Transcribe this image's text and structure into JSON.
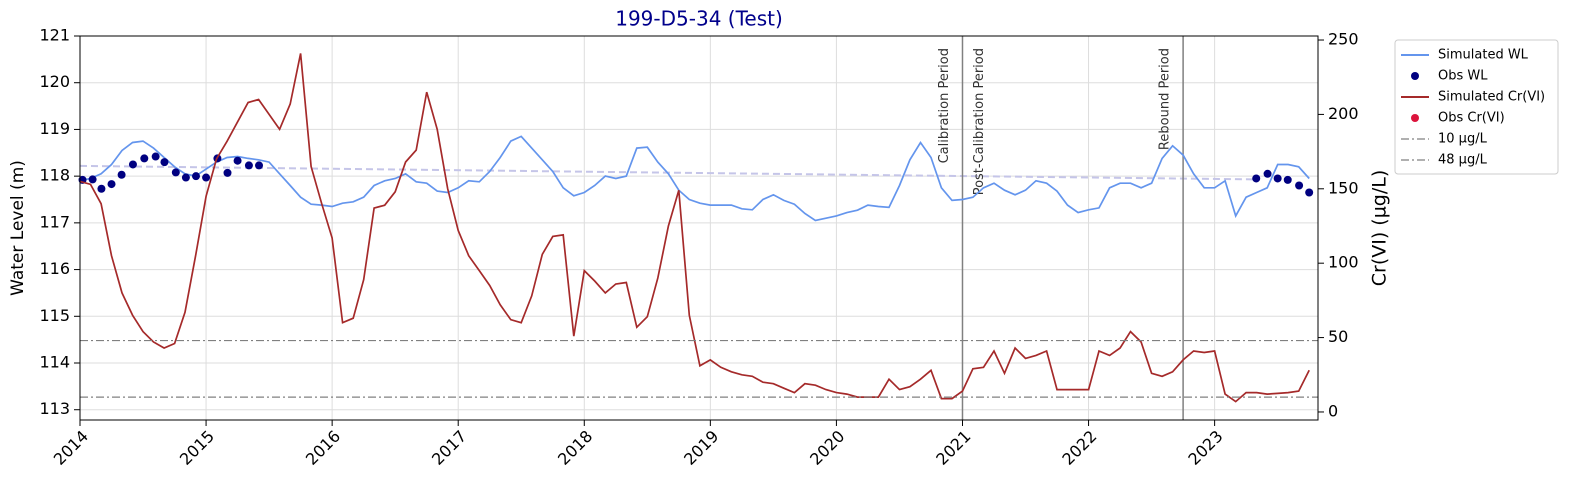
{
  "chart_data": {
    "type": "line",
    "title": "199-D5-34 (Test)",
    "ylabel": "Water Level (m)",
    "y2label": "Cr(VI) (µg/L)",
    "xlim": [
      2014,
      2023.82
    ],
    "xticks": [
      2014,
      2015,
      2016,
      2017,
      2018,
      2019,
      2020,
      2021,
      2022,
      2023
    ],
    "ylim": [
      112.78,
      121
    ],
    "yticks": [
      113,
      114,
      115,
      116,
      117,
      118,
      119,
      120,
      121
    ],
    "y2lim": [
      -5.4,
      252.7
    ],
    "y2ticks": [
      0,
      50,
      100,
      150,
      200,
      250
    ],
    "grid": true,
    "legend": "outside-right",
    "series": [
      {
        "name": "Simulated WL",
        "color": "#6495ed",
        "style": "line",
        "x": [
          2014.0,
          2014.083,
          2014.167,
          2014.25,
          2014.333,
          2014.417,
          2014.5,
          2014.583,
          2014.667,
          2014.75,
          2014.833,
          2014.917,
          2015.0,
          2015.083,
          2015.167,
          2015.25,
          2015.333,
          2015.417,
          2015.5,
          2015.583,
          2015.667,
          2015.75,
          2015.833,
          2015.917,
          2016.0,
          2016.083,
          2016.167,
          2016.25,
          2016.333,
          2016.417,
          2016.5,
          2016.583,
          2016.667,
          2016.75,
          2016.833,
          2016.917,
          2017.0,
          2017.083,
          2017.167,
          2017.25,
          2017.333,
          2017.417,
          2017.5,
          2017.583,
          2017.667,
          2017.75,
          2017.833,
          2017.917,
          2018.0,
          2018.083,
          2018.167,
          2018.25,
          2018.333,
          2018.417,
          2018.5,
          2018.583,
          2018.667,
          2018.75,
          2018.833,
          2018.917,
          2019.0,
          2019.083,
          2019.167,
          2019.25,
          2019.333,
          2019.417,
          2019.5,
          2019.583,
          2019.667,
          2019.75,
          2019.833,
          2019.917,
          2020.0,
          2020.083,
          2020.167,
          2020.25,
          2020.333,
          2020.417,
          2020.5,
          2020.583,
          2020.667,
          2020.75,
          2020.833,
          2020.917,
          2021.0,
          2021.083,
          2021.167,
          2021.25,
          2021.333,
          2021.417,
          2021.5,
          2021.583,
          2021.667,
          2021.75,
          2021.833,
          2021.917,
          2022.0,
          2022.083,
          2022.167,
          2022.25,
          2022.333,
          2022.417,
          2022.5,
          2022.583,
          2022.667,
          2022.75,
          2022.833,
          2022.917,
          2023.0,
          2023.083,
          2023.167,
          2023.25,
          2023.333,
          2023.417,
          2023.5,
          2023.583,
          2023.667,
          2023.75
        ],
        "values": [
          117.9,
          117.95,
          118.05,
          118.25,
          118.55,
          118.72,
          118.75,
          118.6,
          118.4,
          118.2,
          118.05,
          118.0,
          118.15,
          118.3,
          118.4,
          118.42,
          118.38,
          118.35,
          118.3,
          118.05,
          117.8,
          117.55,
          117.4,
          117.38,
          117.35,
          117.42,
          117.45,
          117.55,
          117.8,
          117.9,
          117.95,
          118.05,
          117.88,
          117.85,
          117.68,
          117.65,
          117.75,
          117.9,
          117.88,
          118.1,
          118.4,
          118.75,
          118.85,
          118.6,
          118.35,
          118.1,
          117.75,
          117.58,
          117.65,
          117.8,
          118.0,
          117.95,
          118.0,
          118.6,
          118.62,
          118.3,
          118.05,
          117.7,
          117.5,
          117.42,
          117.38,
          117.38,
          117.38,
          117.3,
          117.28,
          117.5,
          117.6,
          117.48,
          117.4,
          117.2,
          117.05,
          117.1,
          117.15,
          117.22,
          117.27,
          117.38,
          117.35,
          117.33,
          117.8,
          118.35,
          118.72,
          118.4,
          117.75,
          117.48,
          117.5,
          117.55,
          117.75,
          117.85,
          117.7,
          117.6,
          117.7,
          117.9,
          117.85,
          117.68,
          117.38,
          117.22,
          117.28,
          117.32,
          117.75,
          117.85,
          117.85,
          117.75,
          117.85,
          118.38,
          118.65,
          118.45,
          118.05,
          117.75,
          117.75,
          117.9,
          117.15,
          117.55,
          117.65,
          117.75,
          118.25,
          118.25,
          118.2,
          117.95
        ]
      },
      {
        "name": "Obs WL",
        "color": "#000080",
        "style": "marker",
        "x": [
          2014.02,
          2014.1,
          2014.17,
          2014.25,
          2014.33,
          2014.42,
          2014.51,
          2014.6,
          2014.67,
          2014.76,
          2014.84,
          2014.92,
          2015.0,
          2015.09,
          2015.17,
          2015.25,
          2015.34,
          2015.42,
          2023.33,
          2023.42,
          2023.5,
          2023.58,
          2023.67,
          2023.75
        ],
        "values": [
          117.92,
          117.93,
          117.73,
          117.83,
          118.03,
          118.25,
          118.38,
          118.42,
          118.3,
          118.08,
          117.97,
          118.0,
          117.97,
          118.38,
          118.07,
          118.33,
          118.23,
          118.23,
          117.95,
          118.05,
          117.95,
          117.92,
          117.8,
          117.65
        ]
      },
      {
        "name": "Simulated Cr(VI)",
        "color": "#a52a2a",
        "style": "line",
        "axis": "y2",
        "x": [
          2014.0,
          2014.083,
          2014.167,
          2014.25,
          2014.333,
          2014.417,
          2014.5,
          2014.583,
          2014.667,
          2014.75,
          2014.833,
          2014.917,
          2015.0,
          2015.083,
          2015.167,
          2015.25,
          2015.333,
          2015.417,
          2015.5,
          2015.583,
          2015.667,
          2015.75,
          2015.833,
          2015.917,
          2016.0,
          2016.083,
          2016.167,
          2016.25,
          2016.333,
          2016.417,
          2016.5,
          2016.583,
          2016.667,
          2016.75,
          2016.833,
          2016.917,
          2017.0,
          2017.083,
          2017.167,
          2017.25,
          2017.333,
          2017.417,
          2017.5,
          2017.583,
          2017.667,
          2017.75,
          2017.833,
          2017.917,
          2018.0,
          2018.083,
          2018.167,
          2018.25,
          2018.333,
          2018.417,
          2018.5,
          2018.583,
          2018.667,
          2018.75,
          2018.833,
          2018.917,
          2019.0,
          2019.083,
          2019.167,
          2019.25,
          2019.333,
          2019.417,
          2019.5,
          2019.583,
          2019.667,
          2019.75,
          2019.833,
          2019.917,
          2020.0,
          2020.083,
          2020.167,
          2020.25,
          2020.333,
          2020.417,
          2020.5,
          2020.583,
          2020.667,
          2020.75,
          2020.833,
          2020.917,
          2021.0,
          2021.083,
          2021.167,
          2021.25,
          2021.333,
          2021.417,
          2021.5,
          2021.583,
          2021.667,
          2021.75,
          2021.833,
          2021.917,
          2022.0,
          2022.083,
          2022.167,
          2022.25,
          2022.333,
          2022.417,
          2022.5,
          2022.583,
          2022.667,
          2022.75,
          2022.833,
          2022.917,
          2023.0,
          2023.083,
          2023.167,
          2023.25,
          2023.333,
          2023.417,
          2023.5,
          2023.583,
          2023.667,
          2023.75
        ],
        "values": [
          155,
          153,
          140,
          105,
          80,
          65,
          54,
          47,
          43,
          46,
          67,
          105,
          145,
          170,
          182,
          195,
          208,
          210,
          200,
          190,
          207,
          241,
          165,
          140,
          117,
          60,
          63,
          89,
          137,
          139,
          148,
          168,
          176,
          215,
          190,
          150,
          122,
          105,
          95,
          85,
          72,
          62,
          60,
          78,
          106,
          118,
          119,
          51,
          95,
          88,
          80,
          86,
          87,
          57,
          64,
          90,
          125,
          149,
          65,
          31,
          35,
          30,
          27,
          25,
          24,
          20,
          19,
          16,
          13,
          19,
          18,
          15,
          13,
          12,
          10,
          10,
          10,
          22,
          15,
          17,
          22,
          28,
          9,
          9,
          14,
          29,
          30,
          41,
          26,
          43,
          36,
          38,
          41,
          15,
          15,
          15,
          15,
          41,
          38,
          43,
          54,
          47,
          26,
          24,
          27,
          35,
          41,
          40,
          41,
          12,
          7,
          13,
          13,
          12,
          12.5,
          13,
          14,
          28
        ]
      },
      {
        "name": "Obs Cr(VI)",
        "color": "#dc143c",
        "style": "marker",
        "axis": "y2",
        "x": [],
        "values": []
      },
      {
        "name": "10 µg/L",
        "color": "#808080",
        "style": "hline",
        "axis": "y2",
        "values": [
          10
        ]
      },
      {
        "name": "48 µg/L",
        "color": "#808080",
        "style": "hline",
        "axis": "y2",
        "values": [
          48
        ]
      }
    ],
    "trend": {
      "color": "#c5c5e8",
      "x": [
        2014,
        2023.33
      ],
      "values": [
        118.22,
        117.93
      ]
    },
    "vlines": [
      {
        "x": 2021,
        "left_label": "Calibration Period",
        "right_label": "Post-Calibration Period"
      },
      {
        "x": 2022.75,
        "left_label": "Rebound Period"
      }
    ]
  }
}
